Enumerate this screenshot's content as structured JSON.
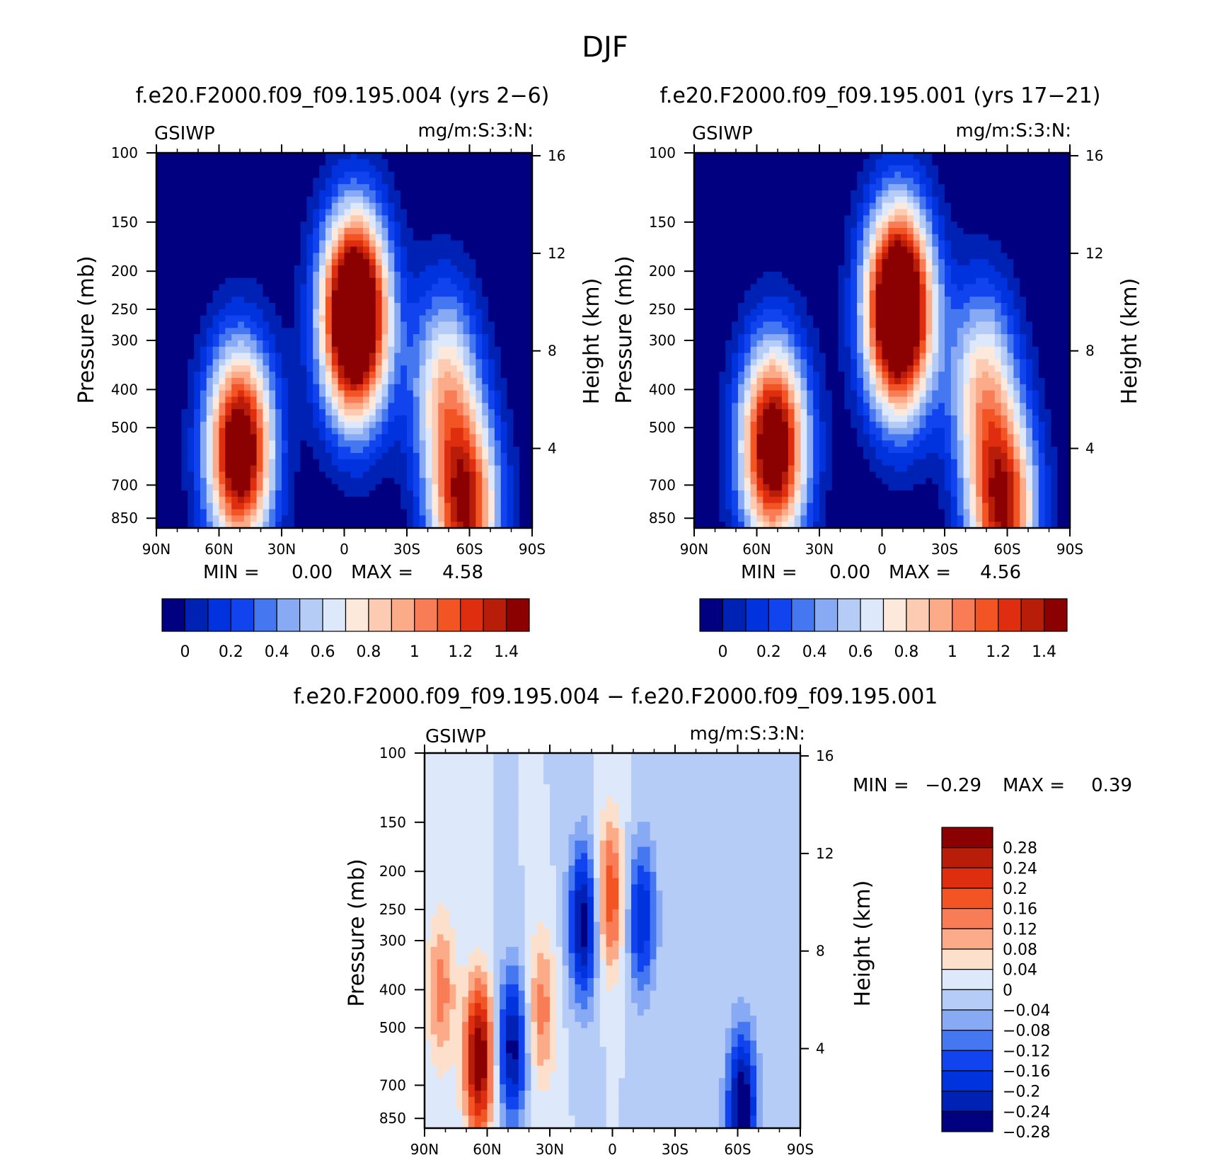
{
  "title": "DJF",
  "chart_data": [
    {
      "type": "heatmap",
      "title": "f.e20.F2000.f09_f09.195.004 (yrs 2−6)",
      "left_label": "GSIWP",
      "units": "mg/m:S:3:N:",
      "ylabel": "Pressure (mb)",
      "ylabel_right": "Height (km)",
      "xticks": [
        "90N",
        "60N",
        "30N",
        "0",
        "30S",
        "60S",
        "90S"
      ],
      "yticks": [
        "100",
        "150",
        "200",
        "250",
        "300",
        "400",
        "500",
        "700",
        "850"
      ],
      "yticks_right": [
        "16",
        "12",
        "8",
        "4"
      ],
      "stats": {
        "min_label": "MIN =",
        "min": "0.00",
        "max_label": "MAX =",
        "max": "4.58"
      },
      "colorbar_labels": [
        "0",
        "0.2",
        "0.4",
        "0.6",
        "0.8",
        "1",
        "1.2",
        "1.4"
      ],
      "features": [
        {
          "lat": 50,
          "p": 570,
          "amp": 1.8
        },
        {
          "lat": -5,
          "p": 260,
          "amp": 2.3
        },
        {
          "lat": -48,
          "p": 390,
          "amp": 0.85
        },
        {
          "lat": -58,
          "p": 820,
          "amp": 1.45
        }
      ]
    },
    {
      "type": "heatmap",
      "title": "f.e20.F2000.f09_f09.195.001 (yrs 17−21)",
      "left_label": "GSIWP",
      "units": "mg/m:S:3:N:",
      "ylabel": "Pressure (mb)",
      "ylabel_right": "Height (km)",
      "xticks": [
        "90N",
        "60N",
        "30N",
        "0",
        "30S",
        "60S",
        "90S"
      ],
      "yticks": [
        "100",
        "150",
        "200",
        "250",
        "300",
        "400",
        "500",
        "700",
        "850"
      ],
      "yticks_right": [
        "16",
        "12",
        "8",
        "4"
      ],
      "stats": {
        "min_label": "MIN =",
        "min": "0.00",
        "max_label": "MAX =",
        "max": "4.56"
      },
      "colorbar_labels": [
        "0",
        "0.2",
        "0.4",
        "0.6",
        "0.8",
        "1",
        "1.2",
        "1.4"
      ],
      "features": [
        {
          "lat": 52,
          "p": 560,
          "amp": 1.8
        },
        {
          "lat": -8,
          "p": 250,
          "amp": 2.3
        },
        {
          "lat": -48,
          "p": 390,
          "amp": 0.85
        },
        {
          "lat": -58,
          "p": 820,
          "amp": 1.45
        }
      ]
    },
    {
      "type": "heatmap",
      "title": "f.e20.F2000.f09_f09.195.004 − f.e20.F2000.f09_f09.195.001",
      "left_label": "GSIWP",
      "units": "mg/m:S:3:N:",
      "ylabel": "Pressure (mb)",
      "ylabel_right": "Height (km)",
      "xticks": [
        "90N",
        "60N",
        "30N",
        "0",
        "30S",
        "60S",
        "90S"
      ],
      "yticks": [
        "100",
        "150",
        "200",
        "250",
        "300",
        "400",
        "500",
        "700",
        "850"
      ],
      "yticks_right": [
        "16",
        "12",
        "8",
        "4"
      ],
      "stats": {
        "min_label": "MIN =",
        "min": "−0.29",
        "max_label": "MAX =",
        "max": "0.39"
      },
      "colorbar_labels": [
        "0.28",
        "0.24",
        "0.2",
        "0.16",
        "0.12",
        "0.08",
        "0.04",
        "0",
        "−0.04",
        "−0.08",
        "−0.12",
        "−0.16",
        "−0.2",
        "−0.24",
        "−0.28"
      ],
      "features": [
        {
          "lat": 64,
          "p": 600,
          "amp": 0.34
        },
        {
          "lat": 48,
          "p": 560,
          "amp": -0.26
        },
        {
          "lat": 34,
          "p": 450,
          "amp": 0.14
        },
        {
          "lat": 14,
          "p": 270,
          "amp": -0.27
        },
        {
          "lat": 1,
          "p": 230,
          "amp": 0.2
        },
        {
          "lat": -14,
          "p": 260,
          "amp": -0.2
        },
        {
          "lat": -62,
          "p": 800,
          "amp": -0.3
        },
        {
          "lat": 82,
          "p": 400,
          "amp": 0.14
        }
      ]
    }
  ],
  "colors": {
    "palette": [
      "#000080",
      "#0022b4",
      "#0033dd",
      "#1144ee",
      "#4477f0",
      "#88aaf5",
      "#b5ccf7",
      "#dde9fb",
      "#fde9db",
      "#fdcbb2",
      "#fcab88",
      "#f87c55",
      "#f35424",
      "#de2e0f",
      "#b81d0a",
      "#8b0000"
    ],
    "diff_palette": [
      "#8b0000",
      "#b81d0a",
      "#de2e0f",
      "#f35424",
      "#f87c55",
      "#fcab88",
      "#fde0cc",
      "#dde9fb",
      "#b5ccf7",
      "#88aaf5",
      "#4477f0",
      "#1144ee",
      "#0033dd",
      "#0022b4",
      "#000080"
    ]
  }
}
